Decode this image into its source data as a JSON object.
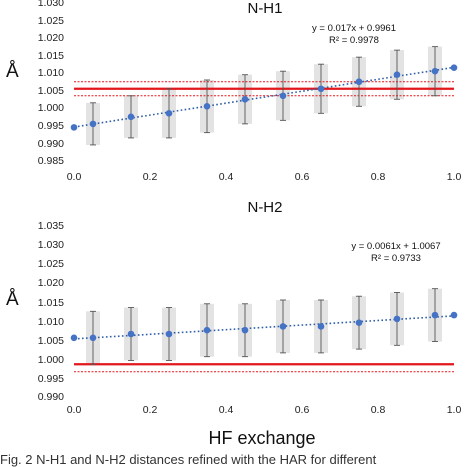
{
  "xlabel": "HF exchange",
  "caption": "Fig. 2  N-H1 and N-H2 distances refined with the HAR for different",
  "colors": {
    "points": "#4472C4",
    "trend": "#2E5EAA",
    "reference": "#E3161B",
    "error_bar": "#555555",
    "band": "#D9D9D9"
  },
  "chart_data": [
    {
      "type": "scatter",
      "title": "N-H1",
      "ylabel": "Å",
      "xlim": [
        0.0,
        1.0
      ],
      "ylim": [
        0.985,
        1.03
      ],
      "xticks": [
        "0.0",
        "0.2",
        "0.4",
        "0.6",
        "0.8",
        "1.0"
      ],
      "yticks": [
        "0.985",
        "0.990",
        "0.995",
        "1.000",
        "1.005",
        "1.010",
        "1.015",
        "1.020",
        "1.025",
        "1.030"
      ],
      "x": [
        0.0,
        0.05,
        0.15,
        0.25,
        0.35,
        0.45,
        0.55,
        0.65,
        0.75,
        0.85,
        0.95,
        1.0
      ],
      "y": [
        0.996,
        0.997,
        0.999,
        1.0,
        1.002,
        1.004,
        1.005,
        1.007,
        1.009,
        1.011,
        1.012,
        1.013
      ],
      "err": [
        0.0,
        0.006,
        0.006,
        0.007,
        0.0075,
        0.007,
        0.007,
        0.007,
        0.007,
        0.007,
        0.007,
        0.0
      ],
      "reference": {
        "value": 1.007,
        "upper": 1.009,
        "lower": 1.005
      },
      "trendline": {
        "slope": 0.017,
        "intercept": 0.9961,
        "equation": "y = 0.017x + 0.9961",
        "r2": "R² = 0.9978"
      }
    },
    {
      "type": "scatter",
      "title": "N-H2",
      "ylabel": "Å",
      "xlim": [
        0.0,
        1.0
      ],
      "ylim": [
        0.99,
        1.035
      ],
      "xticks": [
        "0.0",
        "0.2",
        "0.4",
        "0.6",
        "0.8",
        "1.0"
      ],
      "yticks": [
        "0.990",
        "0.995",
        "1.000",
        "1.005",
        "1.010",
        "1.015",
        "1.020",
        "1.025",
        "1.030",
        "1.035"
      ],
      "x": [
        0.0,
        0.05,
        0.15,
        0.25,
        0.35,
        0.45,
        0.55,
        0.65,
        0.75,
        0.85,
        0.95,
        1.0
      ],
      "y": [
        1.007,
        1.007,
        1.008,
        1.008,
        1.009,
        1.009,
        1.01,
        1.01,
        1.011,
        1.012,
        1.013,
        1.013
      ],
      "err": [
        0.0,
        0.007,
        0.007,
        0.007,
        0.007,
        0.007,
        0.007,
        0.007,
        0.007,
        0.007,
        0.007,
        0.0
      ],
      "reference": {
        "value": 1.0,
        "upper": 1.0,
        "lower": 0.998
      },
      "trendline": {
        "slope": 0.0061,
        "intercept": 1.0067,
        "equation": "y = 0.0061x + 1.0067",
        "r2": "R² = 0.9733"
      }
    }
  ]
}
